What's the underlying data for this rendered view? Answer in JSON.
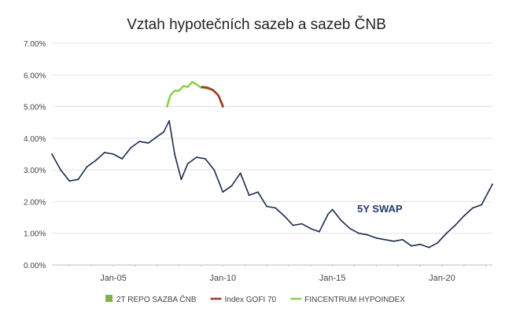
{
  "chart_data": {
    "type": "line",
    "title": "Vztah hypotečních sazeb a sazeb ČNB",
    "xlabel": "",
    "ylabel": "",
    "ylim": [
      0,
      7
    ],
    "y_ticks": [
      "0.00%",
      "1.00%",
      "2.00%",
      "3.00%",
      "4.00%",
      "5.00%",
      "6.00%",
      "7.00%"
    ],
    "x_ticks": [
      {
        "label": "Jan-05",
        "year": 2005
      },
      {
        "label": "Jan-10",
        "year": 2010
      },
      {
        "label": "Jan-15",
        "year": 2015
      },
      {
        "label": "Jan-20",
        "year": 2020
      }
    ],
    "xlim": [
      2002.2,
      2022.3
    ],
    "grid": "horizontal",
    "legend_position": "bottom",
    "legend": [
      {
        "label": "2T REPO SAZBA ČNB",
        "color": "#7ab648",
        "marker": "square"
      },
      {
        "label": "Index GOFI 70",
        "color": "#a33a2e",
        "marker": "line"
      },
      {
        "label": "FINCENTRUM HYPOINDEX",
        "color": "#8fd14f",
        "marker": "line"
      }
    ],
    "annotations": [
      {
        "text": "5Y SWAP"
      }
    ],
    "series": [
      {
        "name": "5Y SWAP",
        "color": "#1b2a4e",
        "x": [
          2002.2,
          2002.6,
          2003.0,
          2003.4,
          2003.8,
          2004.2,
          2004.6,
          2005.0,
          2005.4,
          2005.8,
          2006.2,
          2006.6,
          2007.0,
          2007.3,
          2007.55,
          2007.8,
          2008.1,
          2008.4,
          2008.8,
          2009.2,
          2009.6,
          2010.0,
          2010.4,
          2010.8,
          2011.2,
          2011.6,
          2012.0,
          2012.4,
          2012.8,
          2013.2,
          2013.6,
          2014.0,
          2014.4,
          2014.8,
          2015.0,
          2015.4,
          2015.8,
          2016.2,
          2016.6,
          2017.0,
          2017.4,
          2017.8,
          2018.2,
          2018.6,
          2019.0,
          2019.4,
          2019.8,
          2020.2,
          2020.6,
          2021.0,
          2021.4,
          2021.8,
          2022.3
        ],
        "y": [
          3.5,
          3.0,
          2.65,
          2.7,
          3.1,
          3.3,
          3.55,
          3.5,
          3.35,
          3.7,
          3.9,
          3.85,
          4.05,
          4.2,
          4.55,
          3.5,
          2.7,
          3.2,
          3.4,
          3.35,
          3.0,
          2.3,
          2.5,
          2.9,
          2.2,
          2.3,
          1.85,
          1.8,
          1.55,
          1.25,
          1.3,
          1.15,
          1.05,
          1.6,
          1.75,
          1.4,
          1.15,
          1.0,
          0.95,
          0.85,
          0.8,
          0.75,
          0.8,
          0.6,
          0.65,
          0.55,
          0.7,
          1.0,
          1.25,
          1.55,
          1.8,
          1.9,
          2.55
        ]
      },
      {
        "name": "FINCENTRUM HYPOINDEX",
        "color": "#8fd14f",
        "x": [
          2007.45,
          2007.6,
          2007.8,
          2008.0,
          2008.2,
          2008.4,
          2008.6,
          2008.8,
          2009.0,
          2009.2,
          2009.4,
          2009.6,
          2009.8,
          2010.0
        ],
        "y": [
          5.0,
          5.35,
          5.5,
          5.5,
          5.65,
          5.62,
          5.78,
          5.7,
          5.6,
          5.58,
          5.55,
          5.5,
          5.35,
          5.05
        ]
      },
      {
        "name": "Index GOFI 70",
        "color": "#a33a2e",
        "x": [
          2009.05,
          2009.3,
          2009.55,
          2009.8,
          2010.0
        ],
        "y": [
          5.62,
          5.6,
          5.52,
          5.35,
          5.0
        ]
      }
    ]
  }
}
